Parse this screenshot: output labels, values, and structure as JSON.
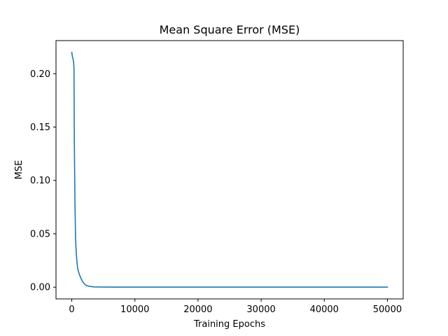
{
  "chart_data": {
    "type": "line",
    "title": "Mean Square Error (MSE)",
    "xlabel": "Training Epochs",
    "ylabel": "MSE",
    "xlim": [
      -2500,
      52500
    ],
    "ylim": [
      -0.011,
      0.231
    ],
    "xticks": [
      0,
      10000,
      20000,
      30000,
      40000,
      50000
    ],
    "xtick_labels": [
      "0",
      "10000",
      "20000",
      "30000",
      "40000",
      "50000"
    ],
    "yticks": [
      0.0,
      0.05,
      0.1,
      0.15,
      0.2
    ],
    "ytick_labels": [
      "0.00",
      "0.05",
      "0.10",
      "0.15",
      "0.20"
    ],
    "grid": false,
    "series": [
      {
        "color": "#1f77b4",
        "x": [
          0,
          100,
          200,
          300,
          350,
          400,
          500,
          600,
          700,
          800,
          900,
          1000,
          1200,
          1400,
          1600,
          1800,
          2000,
          2200,
          2500,
          3000,
          3500,
          4000,
          5000,
          7000,
          10000,
          20000,
          30000,
          40000,
          50000
        ],
        "y": [
          0.22,
          0.216,
          0.214,
          0.21,
          0.205,
          0.14,
          0.08,
          0.045,
          0.033,
          0.025,
          0.019,
          0.016,
          0.012,
          0.009,
          0.0065,
          0.0045,
          0.003,
          0.002,
          0.0012,
          0.0006,
          0.0003,
          0.0002,
          0.0001,
          5e-05,
          3e-05,
          1e-05,
          1e-05,
          5e-06,
          5e-06
        ]
      }
    ]
  }
}
